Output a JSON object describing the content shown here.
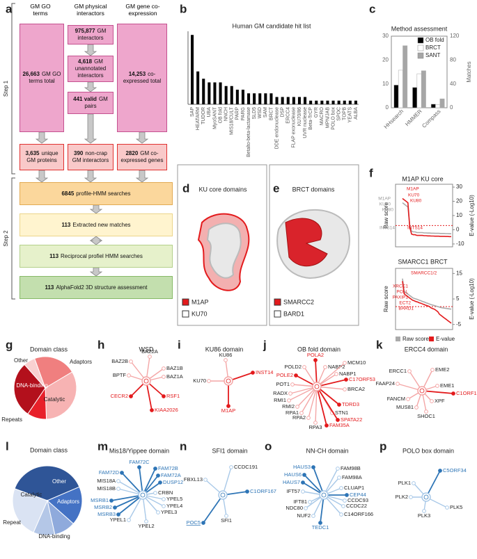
{
  "letters": [
    "a",
    "b",
    "c",
    "d",
    "e",
    "f",
    "g",
    "h",
    "i",
    "j",
    "k",
    "l",
    "m",
    "n",
    "o",
    "p"
  ],
  "flow": {
    "headers": [
      [
        "GM GO",
        "terms"
      ],
      [
        "GM physical",
        "interactors"
      ],
      [
        "GM gene co-",
        "expression"
      ]
    ],
    "steps": [
      "Step 1",
      "Step 2"
    ],
    "step1": [
      {
        "number": "26,663",
        "text": "GM GO terms total"
      },
      {
        "number": "975,877",
        "text": "GM interactors"
      },
      {
        "number": "4,618",
        "text": "GM unannotated interactors"
      },
      {
        "number": "441 valid",
        "text": "GM pairs"
      },
      {
        "number": "14,253",
        "text": "co-expressed total"
      }
    ],
    "filtered": [
      {
        "number": "3,635",
        "text": "unique GM proteins"
      },
      {
        "number": "390",
        "text": "non-crap GM interactors"
      },
      {
        "number": "2820",
        "text": "GM co-expressed genes"
      }
    ],
    "step2": [
      {
        "number": "6845",
        "text": "profile-HMM searches"
      },
      {
        "number": "113",
        "text": "Extracted new matches"
      },
      {
        "number": "113",
        "text": "Reciprocal profiel HMM searches"
      },
      {
        "number": "113",
        "text": "AlphaFold2 3D structure assessment"
      }
    ]
  },
  "chart_data": [
    {
      "type": "bar",
      "title": "Human GM candidate hit list",
      "color": "#000000",
      "ylim": [
        0,
        20
      ],
      "categories": [
        "SAP",
        "HEATARM",
        "TUDOR",
        "UBA",
        "MyoSANT",
        "OB fold",
        "NNCH",
        "MIS18/CULT",
        "PARP",
        "PARG",
        "Betalto-beta-lactamase",
        "SLD5",
        "WSD",
        "SAM",
        "BRCT",
        "DDE endonuclease",
        "DSP",
        "ERCC4",
        "FLAP exonuclease",
        "KU70/86",
        "UVR nuclease",
        "Beta-TrCP",
        "GYR",
        "MACRO",
        "MPN/JAB",
        "POLO box",
        "SPOC",
        "TOPB",
        "YEATS",
        "ALBA"
      ],
      "values": [
        19,
        9,
        7,
        6,
        6,
        6,
        5,
        5,
        4,
        4,
        3,
        3,
        3,
        3,
        3,
        2,
        2,
        2,
        2,
        2,
        2,
        1,
        1,
        1,
        1,
        1,
        1,
        1,
        1,
        1
      ]
    },
    {
      "type": "grouped-bar",
      "title": "Method assessment",
      "categories": [
        "HHsearch",
        "HMMER",
        "Compass"
      ],
      "ylim": [
        0,
        30
      ],
      "yticks": [
        0,
        10,
        20,
        30
      ],
      "y2lim": [
        0,
        120
      ],
      "y2ticks": [
        0,
        40,
        80,
        120
      ],
      "y2label": "Matches",
      "legend": "top-right",
      "series": [
        {
          "name": "OB fold",
          "color": "#000000",
          "axis": "y2",
          "values": [
            38,
            34,
            6
          ]
        },
        {
          "name": "BRCT",
          "color": "#ffffff",
          "axis": "y2",
          "values": [
            63,
            57,
            5
          ]
        },
        {
          "name": "SANT",
          "color": "#a6a6a6",
          "axis": "y2",
          "values": [
            104,
            62,
            15
          ]
        }
      ]
    },
    {
      "type": "line",
      "title": "M1AP KU core",
      "ylabel": "Raw score",
      "y2label": "E-value (-Log10)",
      "y2lim": [
        -12,
        32
      ],
      "y2ticks": [
        30,
        20,
        10,
        0,
        -10
      ],
      "threshold": 3,
      "series": [
        {
          "name": "Raw score",
          "color": "#aaaaaa",
          "axis": "y2",
          "values": [
            19,
            18,
            17,
            16,
            3,
            -1,
            -1.5,
            -1.5,
            -2,
            -2,
            -2,
            -2,
            -2.2,
            -2.2,
            -2.3,
            -2.3,
            -2.4,
            -2.4,
            -2.5,
            -2.5,
            -2.5,
            -2.6,
            -2.6,
            -2.6,
            -2.7,
            -2.7,
            -2.8,
            -2.8
          ]
        },
        {
          "name": "E-value",
          "color": "#e31a1c",
          "axis": "y2",
          "values": [
            22,
            21,
            20,
            19,
            2,
            -3,
            -3.5,
            -3.5,
            -4,
            -4,
            -4,
            -4,
            -4.2,
            -4.2,
            -4.3,
            -4.3,
            -4.4,
            -4.4,
            -4.5,
            -4.5,
            -4.5,
            -4.6,
            -4.6,
            -4.6,
            -4.7,
            -4.7,
            -4.8,
            -4.8
          ]
        }
      ],
      "annotations": [
        {
          "text": "M1AP",
          "color": "#999999"
        },
        {
          "text": "KU70",
          "color": "#999999"
        },
        {
          "text": "KU80",
          "color": "#999999"
        },
        {
          "text": "M1AP",
          "color": "#e31a1c"
        },
        {
          "text": "KU70",
          "color": "#e31a1c"
        },
        {
          "text": "KU80",
          "color": "#e31a1c"
        },
        {
          "text": "INTS14",
          "color": "#999999"
        },
        {
          "text": "INTS14",
          "color": "#e31a1c"
        }
      ]
    },
    {
      "type": "line",
      "title": "SMARCC1 BRCT",
      "ylabel": "Raw score",
      "y2label": "E-value (-Log10)",
      "y2lim": [
        -7,
        17
      ],
      "y2ticks": [
        15,
        5,
        -5
      ],
      "threshold": 2,
      "legend": "bottom",
      "series": [
        {
          "name": "Raw score",
          "color": "#aaaaaa",
          "axis": "y2",
          "values": [
            13,
            8,
            7.5,
            7,
            6.5,
            6,
            5.5,
            5.2,
            5,
            4.8,
            4.5,
            4.3,
            4,
            3.8,
            3.5,
            3.3,
            3,
            2.8,
            2.6,
            2.4,
            2.2,
            2,
            1.8,
            1.6,
            1.5,
            1.4,
            1.3,
            1.2,
            1.1,
            1
          ]
        },
        {
          "name": "E-value",
          "color": "#e31a1c",
          "axis": "y2",
          "values": [
            12,
            7,
            6.5,
            6,
            5.5,
            5,
            4.5,
            4.3,
            4,
            3.8,
            3.5,
            3.3,
            3,
            2.8,
            2.5,
            2.3,
            2,
            1.5,
            1.2,
            1,
            0.5,
            0,
            -1,
            -1.5,
            -2,
            -2.5,
            -3,
            -3.5,
            -4,
            -4.5
          ]
        }
      ],
      "annotations": [
        {
          "text": "SMARCC1/2",
          "color": "#e31a1c"
        },
        {
          "text": "XRCC1",
          "color": "#e31a1c"
        },
        {
          "text": "POLL",
          "color": "#e31a1c"
        },
        {
          "text": "PAXIP1",
          "color": "#e31a1c"
        },
        {
          "text": "ECT2",
          "color": "#e31a1c"
        },
        {
          "text": "BARD1",
          "color": "#e31a1c"
        }
      ]
    },
    {
      "type": "pie",
      "title": "Domain class",
      "categories": [
        "Adaptors",
        "Catalytic",
        "Repeats",
        "DNA-binding",
        "Other"
      ],
      "values": [
        22,
        33,
        10,
        29,
        6
      ],
      "colors": [
        "#f07f7f",
        "#f7b3b3",
        "#e8202a",
        "#b3101c",
        "#f9d0d0"
      ]
    },
    {
      "type": "pie",
      "title": "Domain class",
      "categories": [
        "Other",
        "Adaptors",
        "DNA-binding",
        "Repeat",
        "Catalytic"
      ],
      "values": [
        38,
        18,
        10,
        10,
        24
      ],
      "colors": [
        "#2f5597",
        "#4472c4",
        "#8faadc",
        "#b4c7e7",
        "#dae3f3"
      ]
    }
  ],
  "structures": [
    {
      "title": "KU core domains",
      "legend": [
        {
          "name": "M1AP",
          "color": "#e31a1c"
        },
        {
          "name": "KU70",
          "color": "#ffffff"
        }
      ]
    },
    {
      "title": "BRCT domains",
      "legend": [
        {
          "name": "SMARCC2",
          "color": "#e31a1c"
        },
        {
          "name": "BARD1",
          "color": "#ffffff"
        }
      ]
    }
  ],
  "networks": [
    {
      "title": "WSD",
      "hit_color": "#e31a1c",
      "edge_color": "#f4a6a6",
      "nodes": [
        {
          "label": "BAZ2B",
          "hit": false
        },
        {
          "label": "BAZ2A",
          "hit": false
        },
        {
          "label": "BAZ1B",
          "hit": false
        },
        {
          "label": "BAZ1A",
          "hit": false
        },
        {
          "label": "BPTF",
          "hit": false
        },
        {
          "label": "CECR2",
          "hit": true
        },
        {
          "label": "RSF1",
          "hit": true
        },
        {
          "label": "KIAA2026",
          "hit": true
        }
      ]
    },
    {
      "title": "KU86 domain",
      "hit_color": "#e31a1c",
      "edge_color": "#f4a6a6",
      "nodes": [
        {
          "label": "KU86",
          "hit": false
        },
        {
          "label": "KU70",
          "hit": false
        },
        {
          "label": "INST14",
          "hit": true
        },
        {
          "label": "M1AP",
          "hit": true
        }
      ]
    },
    {
      "title": "OB fold domain",
      "hit_color": "#e31a1c",
      "edge_color": "#f4a6a6",
      "nodes": [
        {
          "label": "POLA2",
          "hit": true
        },
        {
          "label": "POLD2",
          "hit": false
        },
        {
          "label": "NABP2",
          "hit": false
        },
        {
          "label": "MCM10",
          "hit": false
        },
        {
          "label": "NABP1",
          "hit": false
        },
        {
          "label": "POLE2",
          "hit": true
        },
        {
          "label": "C17ORF53",
          "hit": true
        },
        {
          "label": "POT1",
          "hit": false
        },
        {
          "label": "BRCA2",
          "hit": false
        },
        {
          "label": "RADX",
          "hit": false
        },
        {
          "label": "RMI1",
          "hit": false
        },
        {
          "label": "RMI2",
          "hit": false
        },
        {
          "label": "RPA1",
          "hit": false
        },
        {
          "label": "RPA2",
          "hit": false
        },
        {
          "label": "RPA3",
          "hit": false
        },
        {
          "label": "TDRD3",
          "hit": true
        },
        {
          "label": "STN1",
          "hit": false
        },
        {
          "label": "SPATA22",
          "hit": true
        },
        {
          "label": "FAM35A",
          "hit": true
        }
      ]
    },
    {
      "title": "ERCC4 domain",
      "hit_color": "#e31a1c",
      "edge_color": "#f4a6a6",
      "nodes": [
        {
          "label": "ERCC1",
          "hit": false
        },
        {
          "label": "EME2",
          "hit": false
        },
        {
          "label": "FAAP24",
          "hit": false
        },
        {
          "label": "EME1",
          "hit": false
        },
        {
          "label": "C1ORF146",
          "hit": true
        },
        {
          "label": "FANCM",
          "hit": false
        },
        {
          "label": "XPF",
          "hit": false
        },
        {
          "label": "MUS81",
          "hit": false
        },
        {
          "label": "SHOC1",
          "hit": false
        }
      ]
    },
    {
      "title": "Mis18/Yippee domain",
      "hit_color": "#2e75b6",
      "edge_color": "#a9c9e8",
      "nodes": [
        {
          "label": "FAM72C",
          "hit": true
        },
        {
          "label": "FAM72B",
          "hit": true
        },
        {
          "label": "FAM72D",
          "hit": true
        },
        {
          "label": "FAM72A",
          "hit": true
        },
        {
          "label": "DUSP12",
          "hit": true
        },
        {
          "label": "MIS18A",
          "hit": false
        },
        {
          "label": "MIS18B",
          "hit": false
        },
        {
          "label": "CRBN",
          "hit": false
        },
        {
          "label": "YPEL5",
          "hit": false
        },
        {
          "label": "MSRB1",
          "hit": true
        },
        {
          "label": "YPEL4",
          "hit": false
        },
        {
          "label": "MSRB2",
          "hit": true
        },
        {
          "label": "YPEL3",
          "hit": false
        },
        {
          "label": "MSRB3",
          "hit": true
        },
        {
          "label": "YPEL1",
          "hit": false
        },
        {
          "label": "YPEL2",
          "hit": false
        }
      ]
    },
    {
      "title": "SFI1 domain",
      "hit_color": "#2e75b6",
      "edge_color": "#a9c9e8",
      "nodes": [
        {
          "label": "CCDC191",
          "hit": false
        },
        {
          "label": "FBXL13",
          "hit": false
        },
        {
          "label": "C1ORF167",
          "hit": true
        },
        {
          "label": "SFI1",
          "hit": false
        },
        {
          "label": "POC5",
          "hit": true,
          "underline": true
        }
      ]
    },
    {
      "title": "NN-CH domain",
      "hit_color": "#2e75b6",
      "edge_color": "#a9c9e8",
      "nodes": [
        {
          "label": "HAUS3",
          "hit": true
        },
        {
          "label": "FAM98B",
          "hit": false
        },
        {
          "label": "HAUS6",
          "hit": true
        },
        {
          "label": "FAM98A",
          "hit": false
        },
        {
          "label": "HAUS7",
          "hit": true
        },
        {
          "label": "CLUAP1",
          "hit": false
        },
        {
          "label": "IFT57",
          "hit": false
        },
        {
          "label": "CEP44",
          "hit": true
        },
        {
          "label": "IFT81",
          "hit": false
        },
        {
          "label": "CCDC93",
          "hit": false
        },
        {
          "label": "NDC80",
          "hit": false
        },
        {
          "label": "CCDC22",
          "hit": false
        },
        {
          "label": "NUF2",
          "hit": false
        },
        {
          "label": "C14ORF166",
          "hit": false
        },
        {
          "label": "TEDC1",
          "hit": true
        }
      ]
    },
    {
      "title": "POLO box domain",
      "hit_color": "#2e75b6",
      "edge_color": "#a9c9e8",
      "nodes": [
        {
          "label": "C5ORF34",
          "hit": true
        },
        {
          "label": "PLK1",
          "hit": false
        },
        {
          "label": "PLK2",
          "hit": false
        },
        {
          "label": "PLK3",
          "hit": false
        },
        {
          "label": "PLK5",
          "hit": false
        }
      ]
    }
  ]
}
